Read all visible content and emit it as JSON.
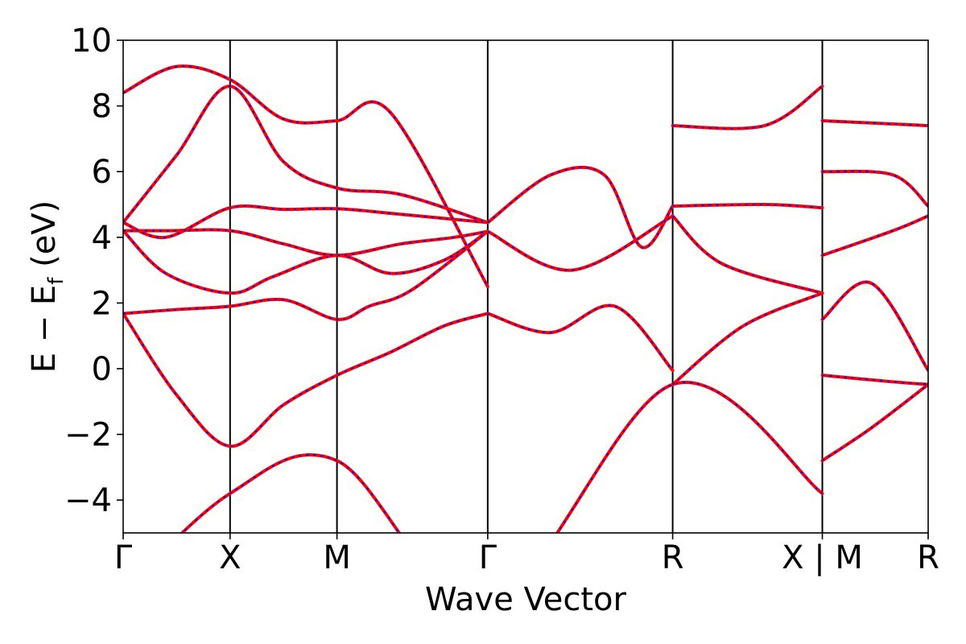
{
  "chart_data": {
    "type": "line",
    "title": "",
    "xlabel": "Wave Vector",
    "ylabel": "E − E",
    "ylabel_sub": "f",
    "ylabel_unit": " (eV)",
    "ylim": [
      -5,
      10
    ],
    "yticks": [
      -4,
      -2,
      0,
      2,
      4,
      6,
      8,
      10
    ],
    "ytick_labels": [
      "−4",
      "−2",
      "0",
      "2",
      "4",
      "6",
      "8",
      "10"
    ],
    "kpath": {
      "x_range": [
        0,
        7.53
      ],
      "x": [
        0,
        1,
        2,
        3.41,
        5.14,
        6.54,
        7.53
      ],
      "labels": [
        "Γ",
        "X",
        "M",
        "Γ",
        "R",
        "X | M",
        "R"
      ],
      "segment_breaks": [
        [
          6.54,
          6.54
        ]
      ]
    },
    "colors": {
      "overlay_line": "#ff0000",
      "base_line": "#0000ff",
      "k_divider": "#000000"
    },
    "grid": false,
    "series": [
      {
        "style": "solid-red-over-dashed-blue",
        "x": [
          0,
          1,
          2,
          3.41,
          5.14,
          6.54
        ],
        "y": [
          -6.8,
          -3.8,
          -2.8,
          -7.2,
          -0.48,
          -3.8
        ]
      },
      {
        "style": "solid-red-over-dashed-blue",
        "x": [
          0,
          0.5,
          1,
          1.5,
          2,
          2.5,
          3,
          3.41
        ],
        "y": [
          1.68,
          -0.8,
          -2.36,
          -1.1,
          -0.2,
          0.5,
          1.3,
          1.68
        ]
      },
      {
        "style": "solid-red-over-dashed-blue",
        "x": [
          0,
          0.5,
          1,
          1.5,
          2,
          2.3,
          2.7,
          3.41
        ],
        "y": [
          1.68,
          1.8,
          1.9,
          2.1,
          1.5,
          1.9,
          2.4,
          4.18
        ]
      },
      {
        "style": "solid-red-over-dashed-blue",
        "x": [
          0,
          0.4,
          1,
          1.4,
          2,
          2.5,
          3,
          3.41
        ],
        "y": [
          4.2,
          2.9,
          2.3,
          2.8,
          3.45,
          2.9,
          3.3,
          4.18
        ]
      },
      {
        "style": "solid-red-over-dashed-blue",
        "x": [
          0,
          0.4,
          1,
          1.5,
          2,
          2.6,
          3.1,
          3.41
        ],
        "y": [
          4.2,
          4.2,
          4.2,
          3.8,
          3.45,
          3.8,
          4.0,
          4.18
        ]
      },
      {
        "style": "solid-red-over-dashed-blue",
        "x": [
          0,
          0.4,
          1,
          1.5,
          2,
          2.6,
          3.41
        ],
        "y": [
          4.45,
          4.0,
          4.9,
          4.85,
          4.87,
          4.7,
          4.45
        ]
      },
      {
        "style": "solid-red-over-dashed-blue",
        "x": [
          0,
          0.5,
          1,
          1.5,
          2,
          2.6,
          3.41
        ],
        "y": [
          4.45,
          6.5,
          8.6,
          6.3,
          5.5,
          5.3,
          4.45
        ]
      },
      {
        "style": "solid-red-over-dashed-blue",
        "x": [
          0,
          0.5,
          1,
          1.5,
          2,
          2.5,
          3.41
        ],
        "y": [
          8.4,
          9.2,
          8.8,
          7.6,
          7.55,
          7.8,
          2.5
        ]
      },
      {
        "style": "solid-red-over-dashed-blue",
        "x": [
          3.41,
          4.0,
          4.6,
          5.14
        ],
        "y": [
          1.68,
          1.1,
          1.9,
          -0.05
        ]
      },
      {
        "style": "solid-red-over-dashed-blue",
        "x": [
          3.41,
          4.2,
          5.14
        ],
        "y": [
          4.18,
          3.0,
          4.65
        ]
      },
      {
        "style": "solid-red-over-dashed-blue",
        "x": [
          3.41,
          4.0,
          4.5,
          4.85,
          5.14
        ],
        "y": [
          4.45,
          5.9,
          5.9,
          3.7,
          4.95
        ]
      },
      {
        "style": "solid-red-over-dashed-blue",
        "x": [
          5.14,
          5.8,
          6.54
        ],
        "y": [
          -0.48,
          1.3,
          2.3
        ]
      },
      {
        "style": "solid-red-over-dashed-blue",
        "x": [
          5.14,
          5.6,
          6.54
        ],
        "y": [
          4.65,
          3.2,
          2.3
        ]
      },
      {
        "style": "solid-red-over-dashed-blue",
        "x": [
          5.14,
          6.0,
          6.54
        ],
        "y": [
          4.95,
          5.0,
          4.9
        ]
      },
      {
        "style": "solid-red-over-dashed-blue",
        "x": [
          5.14,
          6.0,
          6.54
        ],
        "y": [
          7.4,
          7.4,
          8.6
        ]
      },
      {
        "style": "solid-red-over-dashed-blue",
        "x": [
          6.54,
          7.0,
          7.53
        ],
        "y": [
          -2.8,
          -1.8,
          -0.48
        ]
      },
      {
        "style": "solid-red-over-dashed-blue",
        "x": [
          6.54,
          7.2,
          7.53
        ],
        "y": [
          -0.2,
          -0.4,
          -0.48
        ]
      },
      {
        "style": "solid-red-over-dashed-blue",
        "x": [
          6.54,
          7.0,
          7.53
        ],
        "y": [
          1.5,
          2.6,
          -0.05
        ]
      },
      {
        "style": "solid-red-over-dashed-blue",
        "x": [
          6.54,
          7.2,
          7.53
        ],
        "y": [
          3.45,
          4.2,
          4.65
        ]
      },
      {
        "style": "solid-red-over-dashed-blue",
        "x": [
          6.54,
          7.2,
          7.53
        ],
        "y": [
          6.0,
          5.9,
          4.95
        ]
      },
      {
        "style": "solid-red-over-dashed-blue",
        "x": [
          6.54,
          7.2,
          7.53
        ],
        "y": [
          7.55,
          7.45,
          7.4
        ]
      }
    ]
  }
}
